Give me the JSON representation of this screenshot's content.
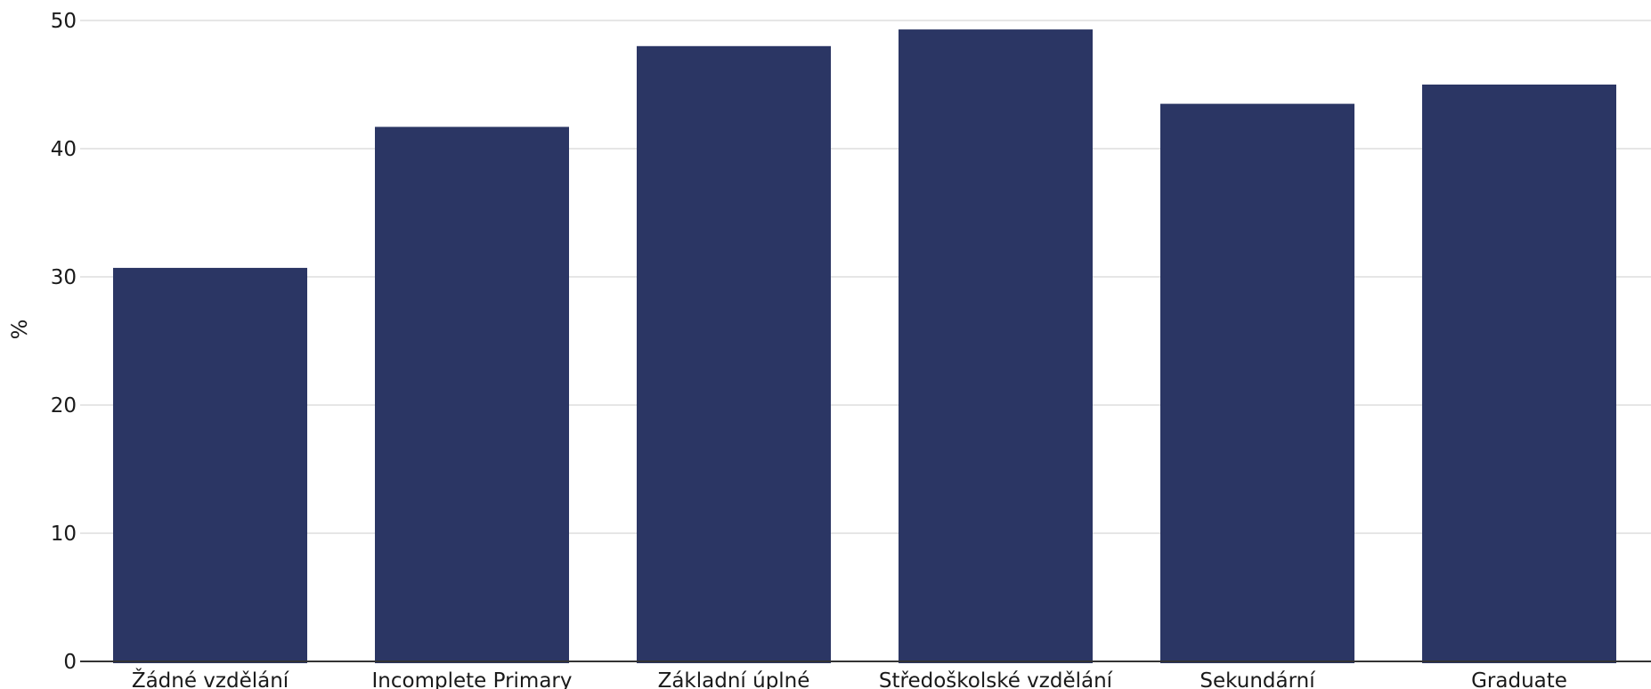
{
  "chart_data": {
    "type": "bar",
    "categories": [
      "Žádné vzdělání",
      "Incomplete Primary",
      "Základní úplné",
      "Středoškolské vzdělání",
      "Sekundární",
      "Graduate"
    ],
    "values": [
      30.7,
      41.7,
      48.0,
      49.3,
      43.5,
      45.0
    ],
    "ylabel": "%",
    "ylim": [
      0,
      50
    ],
    "yticks": [
      "0",
      "10",
      "20",
      "30",
      "40",
      "50"
    ],
    "grid": true,
    "bar_color": "#2b3664"
  }
}
